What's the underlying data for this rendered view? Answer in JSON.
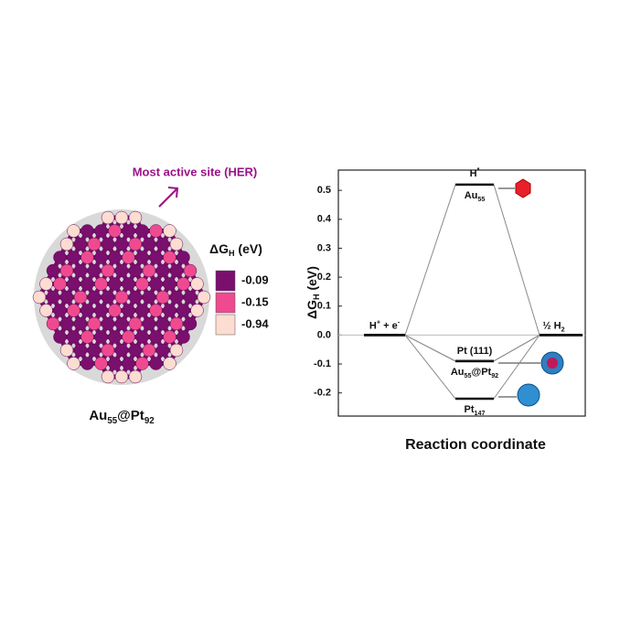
{
  "cluster_panel": {
    "annotation": "Most active site (HER)",
    "legend_title": [
      "ΔG",
      "H",
      " (eV)"
    ],
    "legend": [
      {
        "label": "-0.09",
        "color": "#7a0f6e"
      },
      {
        "label": "-0.15",
        "color": "#ef4a8f"
      },
      {
        "label": "-0.94",
        "color": "#fddcd2"
      }
    ],
    "cluster_label": [
      "Au",
      "55",
      "@Pt",
      "92"
    ]
  },
  "chart_data": {
    "type": "energy",
    "ylabel": [
      "ΔG",
      "H",
      " (eV)"
    ],
    "xlabel": "Reaction coordinate",
    "ylim": [
      -0.28,
      0.57
    ],
    "yticks": [
      -0.2,
      -0.1,
      {
        "value": 0,
        "label": "0.0"
      },
      0.1,
      0.2,
      0.3,
      0.4,
      0.5
    ],
    "states": [
      {
        "parts": [
          "H",
          "+",
          " + e",
          "-"
        ],
        "script": "sup"
      },
      {
        "parts": [
          "H",
          "*"
        ],
        "script": "sup"
      },
      {
        "parts": [
          "½ H",
          "2"
        ],
        "script": "sub"
      }
    ],
    "level_color": "#111111",
    "connector_color": "#8a8a8a",
    "series": [
      {
        "name": [
          "Au",
          "55"
        ],
        "values": [
          0,
          0.52,
          0
        ],
        "label_position": "below"
      },
      {
        "name": [
          "Pt (111)"
        ],
        "values": [
          0,
          -0.09,
          0
        ],
        "label_position": "above"
      },
      {
        "name": [
          "Au",
          "55",
          "@Pt",
          "92"
        ],
        "values": [
          0,
          -0.09,
          0
        ],
        "label_position": "below"
      },
      {
        "name": [
          "Pt",
          "147"
        ],
        "values": [
          0,
          -0.22,
          0
        ],
        "label_position": "below"
      }
    ]
  }
}
